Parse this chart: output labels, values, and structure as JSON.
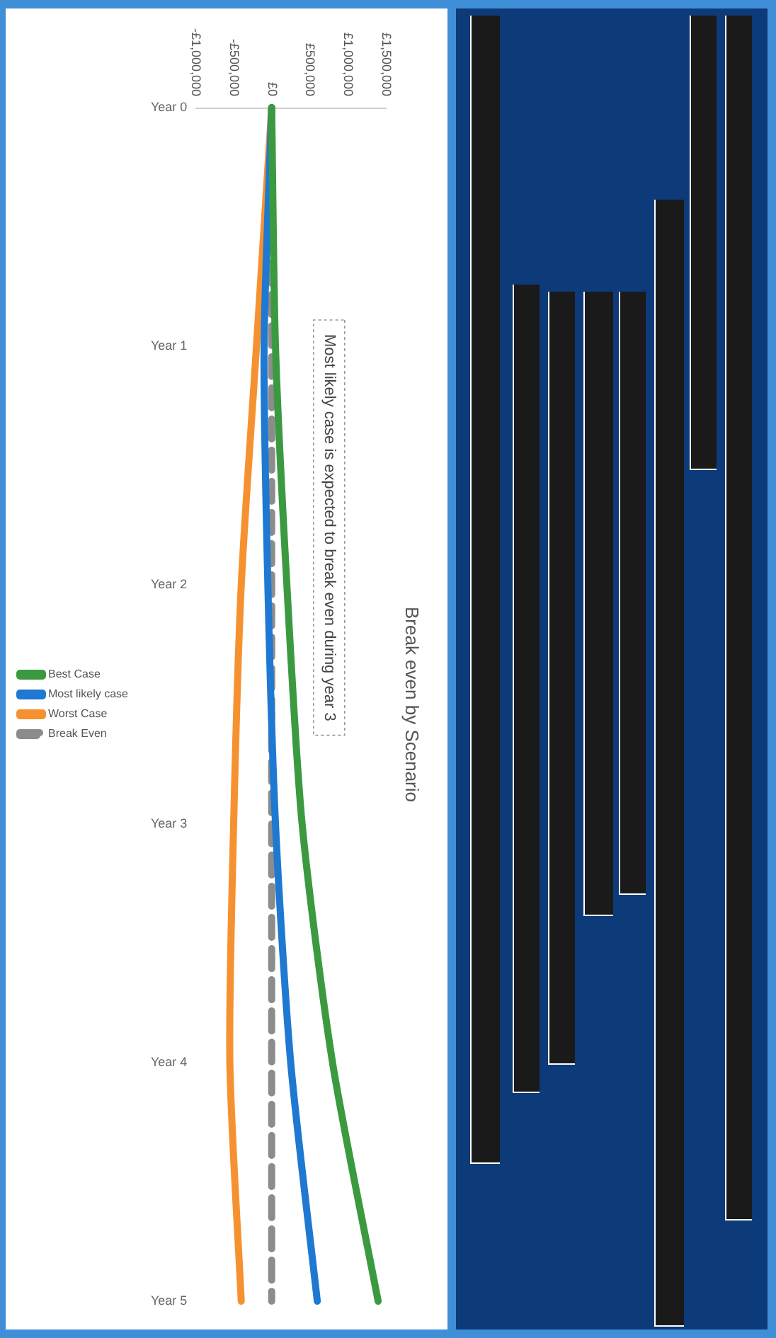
{
  "chart_data": {
    "type": "line",
    "title": "Break even by Scenario",
    "categories": [
      "Year 0",
      "Year 1",
      "Year 2",
      "Year 3",
      "Year 4",
      "Year 5"
    ],
    "series": [
      {
        "name": "Best Case",
        "color": "#3b9a3f",
        "values": [
          0,
          50000,
          200000,
          400000,
          800000,
          1400000
        ]
      },
      {
        "name": "Most likely case",
        "color": "#1f78d1",
        "values": [
          0,
          -100000,
          -50000,
          50000,
          250000,
          600000
        ]
      },
      {
        "name": "Worst Case",
        "color": "#f5922f",
        "values": [
          0,
          -200000,
          -400000,
          -500000,
          -550000,
          -400000
        ]
      },
      {
        "name": "Break Even",
        "color": "#8c8c8c",
        "values": [
          0,
          0,
          0,
          0,
          0,
          0
        ],
        "line_style": "dashed"
      }
    ],
    "orientation": "horizontal",
    "xlim": [
      -1000000,
      1500000
    ],
    "xticks": [
      {
        "value": -1000000,
        "label": "-£1,000,000"
      },
      {
        "value": -500000,
        "label": "-£500,000"
      },
      {
        "value": 0,
        "label": "£0"
      },
      {
        "value": 500000,
        "label": "£500,000"
      },
      {
        "value": 1000000,
        "label": "£1,000,000"
      },
      {
        "value": 1500000,
        "label": "£1,500,000"
      }
    ],
    "legend": "left",
    "marker": "none",
    "annotations": [
      "Most likely case is expected to break even during year 3"
    ]
  }
}
